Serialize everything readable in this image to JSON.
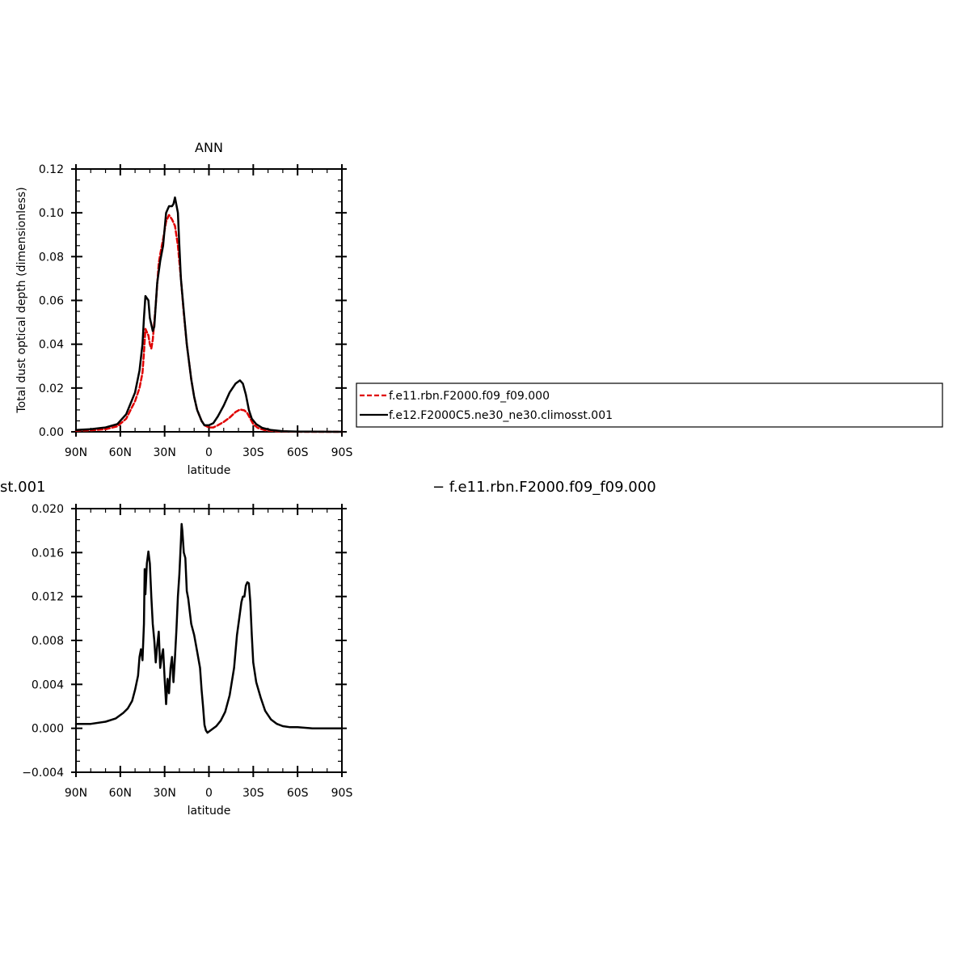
{
  "colors": {
    "model1": "#e00000",
    "model2": "#000000"
  },
  "chart_data": [
    {
      "type": "line",
      "title": "ANN",
      "xlabel": "latitude",
      "ylabel": "Total dust optical depth (dimensionless)",
      "xlim": [
        90,
        -90
      ],
      "ylim": [
        0,
        0.12
      ],
      "xticks": [
        {
          "value": 90,
          "label": "90N"
        },
        {
          "value": 60,
          "label": "60N"
        },
        {
          "value": 30,
          "label": "30N"
        },
        {
          "value": 0,
          "label": "0"
        },
        {
          "value": -30,
          "label": "30S"
        },
        {
          "value": -60,
          "label": "60S"
        },
        {
          "value": -90,
          "label": "90S"
        }
      ],
      "yticks": [
        {
          "value": 0.0,
          "label": "0.00"
        },
        {
          "value": 0.02,
          "label": "0.02"
        },
        {
          "value": 0.04,
          "label": "0.04"
        },
        {
          "value": 0.06,
          "label": "0.06"
        },
        {
          "value": 0.08,
          "label": "0.08"
        },
        {
          "value": 0.1,
          "label": "0.10"
        },
        {
          "value": 0.12,
          "label": "0.12"
        }
      ],
      "legend_position": "right",
      "series": [
        {
          "name": "f.e11.rbn.F2000.f09_f09.000",
          "color": "#e00000",
          "dash": "dashed",
          "x": [
            90,
            80,
            70,
            62,
            56,
            50,
            47,
            45,
            44,
            43,
            41,
            40,
            39,
            38,
            36,
            34,
            33,
            31,
            29,
            27,
            25,
            23,
            21,
            19,
            17,
            15,
            12,
            10,
            8,
            5,
            3,
            0,
            -3,
            -6,
            -10,
            -14,
            -18,
            -21,
            -24,
            -26,
            -28,
            -30,
            -33,
            -38,
            -45,
            -55,
            -65,
            -90
          ],
          "y": [
            0.0005,
            0.0007,
            0.0012,
            0.0025,
            0.006,
            0.014,
            0.02,
            0.027,
            0.036,
            0.047,
            0.044,
            0.04,
            0.038,
            0.042,
            0.058,
            0.077,
            0.081,
            0.088,
            0.096,
            0.099,
            0.097,
            0.094,
            0.085,
            0.07,
            0.054,
            0.04,
            0.024,
            0.016,
            0.01,
            0.005,
            0.003,
            0.002,
            0.002,
            0.003,
            0.0045,
            0.0065,
            0.009,
            0.0102,
            0.0098,
            0.0085,
            0.006,
            0.0035,
            0.0018,
            0.0007,
            0.0003,
            0.0001,
            0.0,
            0.0
          ]
        },
        {
          "name": "f.e12.F2000C5.ne30_ne30.climosst.001",
          "color": "#000000",
          "dash": "solid",
          "x": [
            90,
            80,
            70,
            62,
            56,
            50,
            47,
            45,
            44,
            43,
            41,
            40,
            38,
            37,
            35,
            33,
            31,
            29,
            27,
            25,
            24,
            23,
            21,
            20,
            19,
            17,
            15,
            12,
            10,
            8,
            5,
            3,
            0,
            -3,
            -6,
            -10,
            -14,
            -18,
            -21,
            -23,
            -25,
            -27,
            -29,
            -32,
            -36,
            -42,
            -50,
            -60,
            -90
          ],
          "y": [
            0.0008,
            0.0012,
            0.002,
            0.0035,
            0.008,
            0.018,
            0.028,
            0.04,
            0.052,
            0.062,
            0.06,
            0.052,
            0.046,
            0.048,
            0.068,
            0.078,
            0.085,
            0.1,
            0.103,
            0.103,
            0.104,
            0.107,
            0.1,
            0.085,
            0.07,
            0.055,
            0.04,
            0.024,
            0.016,
            0.01,
            0.005,
            0.003,
            0.003,
            0.004,
            0.007,
            0.012,
            0.018,
            0.022,
            0.0235,
            0.022,
            0.017,
            0.01,
            0.006,
            0.0035,
            0.0018,
            0.0008,
            0.0003,
            0.0001,
            0.0
          ]
        }
      ]
    },
    {
      "type": "line",
      "title_fragment": "st.001",
      "legend_text": "− f.e11.rbn.F2000.f09_f09.000",
      "xlabel": "latitude",
      "xlim": [
        90,
        -90
      ],
      "ylim": [
        -0.004,
        0.02
      ],
      "xticks": [
        {
          "value": 90,
          "label": "90N"
        },
        {
          "value": 60,
          "label": "60N"
        },
        {
          "value": 30,
          "label": "30N"
        },
        {
          "value": 0,
          "label": "0"
        },
        {
          "value": -30,
          "label": "30S"
        },
        {
          "value": -60,
          "label": "60S"
        },
        {
          "value": -90,
          "label": "90S"
        }
      ],
      "yticks": [
        {
          "value": -0.004,
          "label": "−0.004"
        },
        {
          "value": 0.0,
          "label": "0.000"
        },
        {
          "value": 0.004,
          "label": "0.004"
        },
        {
          "value": 0.008,
          "label": "0.008"
        },
        {
          "value": 0.012,
          "label": "0.012"
        },
        {
          "value": 0.016,
          "label": "0.016"
        },
        {
          "value": 0.02,
          "label": "0.020"
        }
      ],
      "series": [
        {
          "color": "#000000",
          "dash": "solid",
          "x": [
            90,
            80,
            70,
            63,
            58,
            55,
            52,
            50,
            48,
            47,
            46,
            45,
            44,
            43.5,
            43,
            42,
            41,
            40,
            39,
            38,
            37,
            36,
            35,
            34,
            33,
            32,
            31,
            30,
            29,
            28,
            27,
            26,
            25,
            24,
            23,
            22,
            21,
            20,
            19,
            18.5,
            18,
            17,
            16,
            15,
            14,
            12,
            10,
            8,
            6,
            5,
            4,
            3,
            2,
            1,
            0,
            -2,
            -5,
            -8,
            -11,
            -14,
            -17,
            -19,
            -21,
            -22,
            -23,
            -24,
            -25,
            -26,
            -27,
            -28,
            -29,
            -30,
            -32,
            -35,
            -38,
            -42,
            -46,
            -50,
            -55,
            -60,
            -70,
            -80,
            -90
          ],
          "y": [
            0.0004,
            0.0004,
            0.0006,
            0.0009,
            0.0014,
            0.0018,
            0.0025,
            0.0035,
            0.0048,
            0.0065,
            0.0072,
            0.0062,
            0.0095,
            0.0145,
            0.0122,
            0.015,
            0.0161,
            0.015,
            0.012,
            0.0095,
            0.008,
            0.006,
            0.0075,
            0.0088,
            0.0055,
            0.0065,
            0.0072,
            0.0045,
            0.0022,
            0.0045,
            0.0032,
            0.0055,
            0.0065,
            0.0042,
            0.0065,
            0.009,
            0.012,
            0.014,
            0.017,
            0.0186,
            0.018,
            0.016,
            0.0155,
            0.0125,
            0.0118,
            0.0095,
            0.0085,
            0.007,
            0.0055,
            0.0035,
            0.002,
            0.0003,
            -0.0002,
            -0.0004,
            -0.0003,
            -0.0001,
            0.0002,
            0.0007,
            0.0015,
            0.003,
            0.0055,
            0.0085,
            0.0105,
            0.0115,
            0.012,
            0.012,
            0.013,
            0.0133,
            0.0132,
            0.0115,
            0.0085,
            0.006,
            0.0042,
            0.0028,
            0.0016,
            0.0008,
            0.0004,
            0.0002,
            0.0001,
            0.0001,
            0.0,
            0.0,
            0.0
          ]
        }
      ]
    }
  ]
}
